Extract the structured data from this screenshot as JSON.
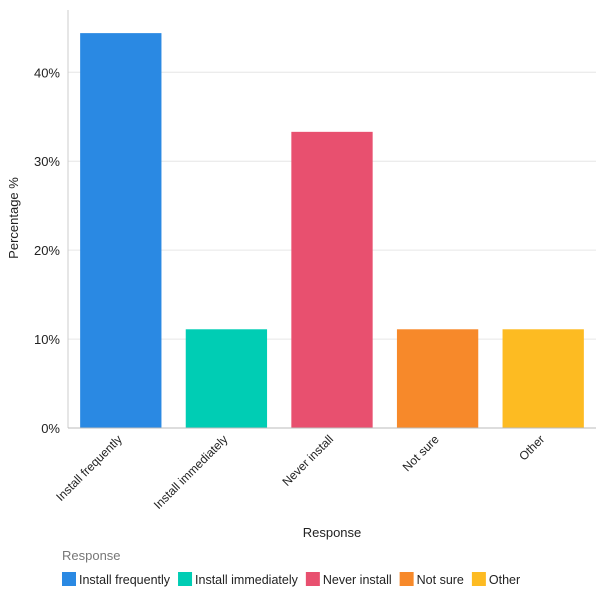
{
  "chart_data": {
    "type": "bar",
    "xlabel": "Response",
    "ylabel": "Percentage %",
    "ylim": [
      0,
      47
    ],
    "yticks": [
      0,
      10,
      20,
      30,
      40
    ],
    "ytick_labels": [
      "0%",
      "10%",
      "20%",
      "30%",
      "40%"
    ],
    "grid": true,
    "legend": {
      "title": "Response",
      "placement": "bottom-left"
    },
    "categories": [
      "Install frequently",
      "Install immediately",
      "Never install",
      "Not sure",
      "Other"
    ],
    "values": [
      44.4,
      11.1,
      33.3,
      11.1,
      11.1
    ],
    "colors": [
      "#2a89e3",
      "#00cdb4",
      "#e8506f",
      "#f7892a",
      "#fdbb22"
    ]
  }
}
